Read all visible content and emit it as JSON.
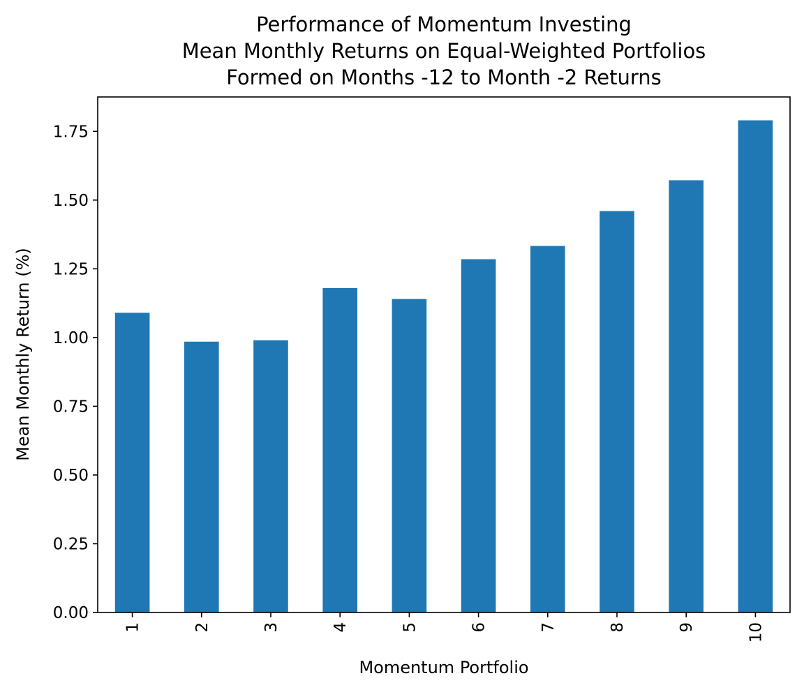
{
  "chart_data": {
    "type": "bar",
    "title_lines": [
      "Performance of Momentum Investing",
      "Mean Monthly Returns on Equal-Weighted Portfolios",
      "Formed on Months -12 to Month -2 Returns"
    ],
    "xlabel": "Momentum Portfolio",
    "ylabel": "Mean Monthly Return (%)",
    "categories": [
      "1",
      "2",
      "3",
      "4",
      "5",
      "6",
      "7",
      "8",
      "9",
      "10"
    ],
    "values": [
      1.09,
      0.985,
      0.99,
      1.18,
      1.14,
      1.285,
      1.333,
      1.46,
      1.572,
      1.79
    ],
    "ylim": [
      0,
      1.875
    ],
    "yticks": [
      "0.00",
      "0.25",
      "0.50",
      "0.75",
      "1.00",
      "1.25",
      "1.50",
      "1.75"
    ],
    "bar_color": "#1f77b4",
    "grid": false,
    "legend": false
  }
}
